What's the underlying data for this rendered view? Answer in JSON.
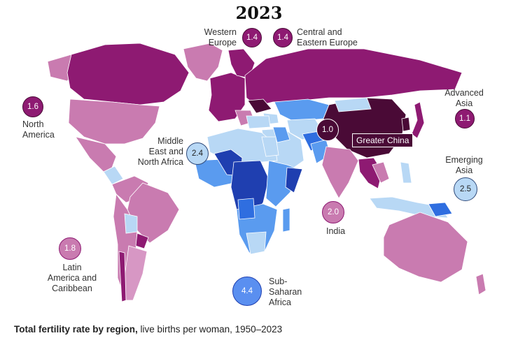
{
  "title": "2023",
  "caption": {
    "bold": "Total fertility rate by region,",
    "rest": " live births per woman, 1950–2023"
  },
  "colors": {
    "very_low": "#4a0a36",
    "low": "#8e1a72",
    "mid_low": "#c97bb0",
    "mid": "#d797c4",
    "near_replacement": "#b8d8f5",
    "above": "#5a9bef",
    "high": "#2f6ee0",
    "very_high": "#1f3fb0"
  },
  "regions": {
    "western_europe": {
      "name": "Western\nEurope",
      "value": "1.4"
    },
    "central_eastern_europe": {
      "name": "Central and\nEastern Europe",
      "value": "1.4"
    },
    "north_america": {
      "name": "North\nAmerica",
      "value": "1.6"
    },
    "advanced_asia": {
      "name": "Advanced\nAsia",
      "value": "1.1"
    },
    "mena": {
      "name": "Middle\nEast and\nNorth Africa",
      "value": "2.4"
    },
    "greater_china": {
      "name": "Greater China",
      "value": "1.0"
    },
    "emerging_asia": {
      "name": "Emerging\nAsia",
      "value": "2.5"
    },
    "india": {
      "name": "India",
      "value": "2.0"
    },
    "latam": {
      "name": "Latin\nAmerica and\nCaribbean",
      "value": "1.8"
    },
    "ssa": {
      "name": "Sub-\nSaharan\nAfrica",
      "value": "4.4"
    }
  }
}
